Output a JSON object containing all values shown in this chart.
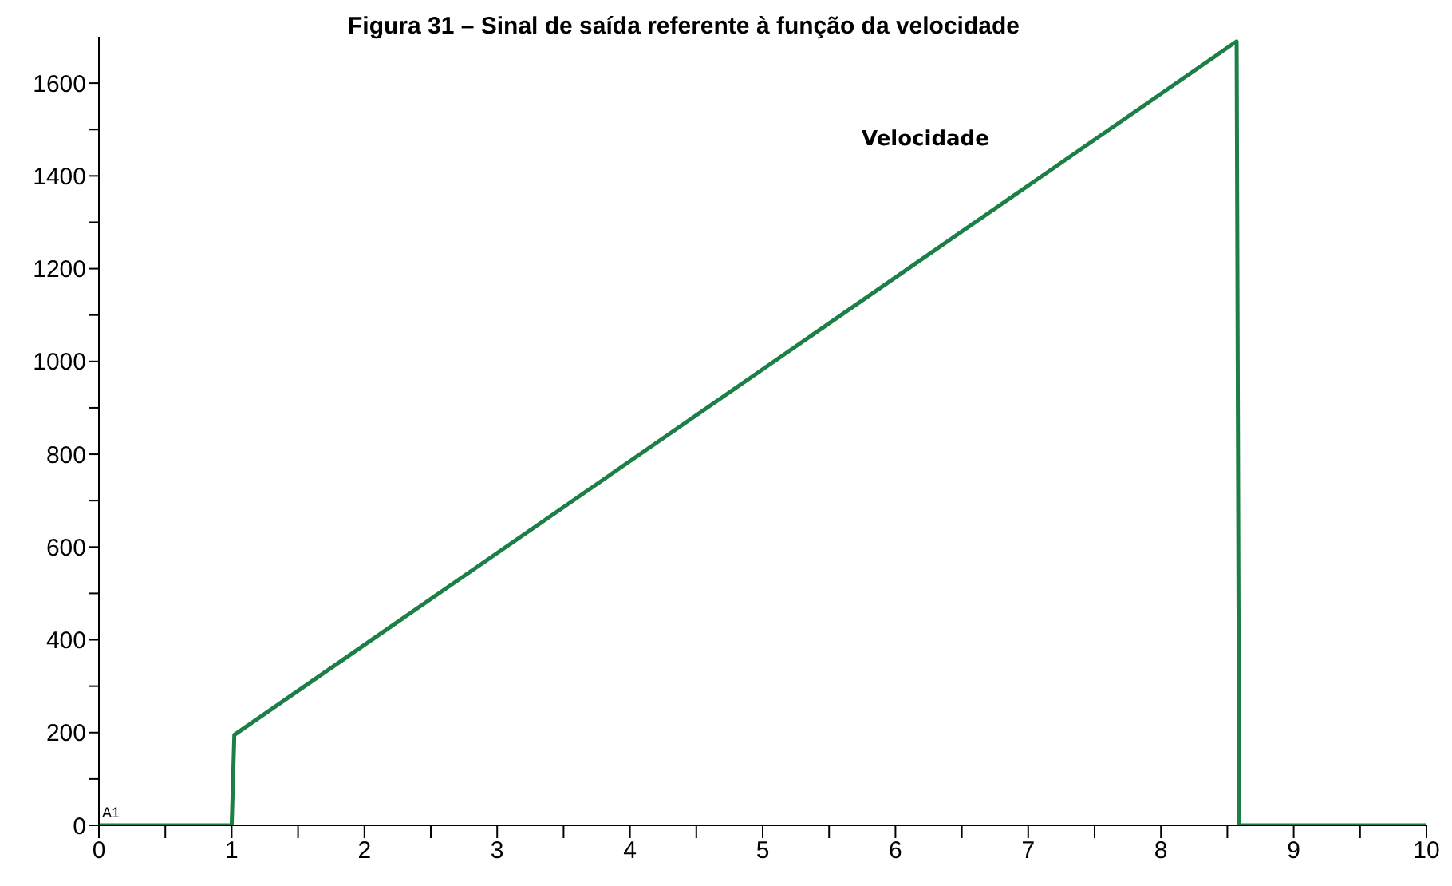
{
  "chart_data": {
    "type": "line",
    "title": "Figura 31 – Sinal de saída referente à função da velocidade",
    "annotations": [
      "A1"
    ],
    "series": [
      {
        "name": "Velocidade",
        "color": "#1b7f46",
        "x": [
          0,
          1,
          1.02,
          8.57,
          8.59,
          10
        ],
        "values": [
          0,
          0,
          195,
          1690,
          0,
          0
        ]
      }
    ],
    "xlim": [
      0,
      10
    ],
    "xticks": [
      0,
      {
        "value": 0.5,
        "label": null
      },
      1,
      {
        "value": 1.5,
        "label": null
      },
      2,
      {
        "value": 2.5,
        "label": null
      },
      3,
      {
        "value": 3.5,
        "label": null
      },
      4,
      {
        "value": 4.5,
        "label": null
      },
      5,
      {
        "value": 5.5,
        "label": null
      },
      6,
      {
        "value": 6.5,
        "label": null
      },
      7,
      {
        "value": 7.5,
        "label": null
      },
      8,
      {
        "value": 8.5,
        "label": null
      },
      9,
      {
        "value": 9.5,
        "label": null
      },
      10
    ],
    "ylim": [
      0,
      1700
    ],
    "yticks": [
      0,
      {
        "value": 100,
        "label": null
      },
      200,
      {
        "value": 300,
        "label": null
      },
      400,
      {
        "value": 500,
        "label": null
      },
      600,
      {
        "value": 700,
        "label": null
      },
      800,
      {
        "value": 900,
        "label": null
      },
      1000,
      {
        "value": 1100,
        "label": null
      },
      1200,
      {
        "value": 1300,
        "label": null
      },
      1400,
      {
        "value": 1500,
        "label": null
      },
      1600
    ],
    "grid": false,
    "legend": false,
    "marker": "none",
    "line_style": "solid"
  }
}
